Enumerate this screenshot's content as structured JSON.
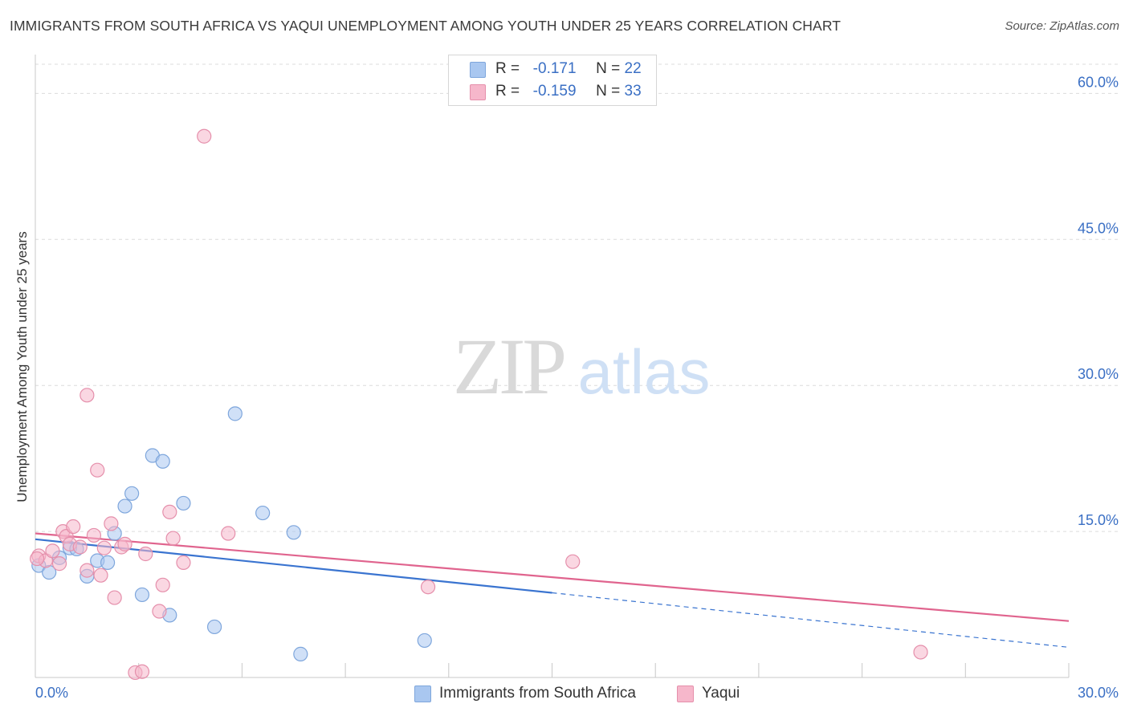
{
  "title": "IMMIGRANTS FROM SOUTH AFRICA VS YAQUI UNEMPLOYMENT AMONG YOUTH UNDER 25 YEARS CORRELATION CHART",
  "source": "Source: ZipAtlas.com",
  "watermark": {
    "zip": "ZIP",
    "atlas": "atlas"
  },
  "legend": {
    "rows": [
      {
        "r_label": "R =",
        "r_value": "-0.171",
        "n_label": "N =",
        "n_value": "22",
        "color": "#a9c7f0"
      },
      {
        "r_label": "R =",
        "r_value": "-0.159",
        "n_label": "N =",
        "n_value": "33",
        "color": "#f6b7cb"
      }
    ]
  },
  "chart_data": {
    "type": "scatter",
    "title": "IMMIGRANTS FROM SOUTH AFRICA VS YAQUI UNEMPLOYMENT AMONG YOUTH UNDER 25 YEARS CORRELATION CHART",
    "xlabel": "",
    "ylabel": "Unemployment Among Youth under 25 years",
    "xlim": [
      0,
      30
    ],
    "ylim": [
      0,
      63
    ],
    "x_ticks": [
      0,
      3,
      6,
      9,
      12,
      15,
      18,
      21,
      24,
      27,
      30
    ],
    "x_tick_labels": [
      {
        "value": 0,
        "label": "0.0%"
      },
      {
        "value": 30,
        "label": "30.0%"
      }
    ],
    "y_ticks": [
      {
        "value": 15,
        "label": "15.0%"
      },
      {
        "value": 30,
        "label": "30.0%"
      },
      {
        "value": 45,
        "label": "45.0%"
      },
      {
        "value": 60,
        "label": "60.0%"
      }
    ],
    "grid": true,
    "legend_position": "top-center",
    "series": [
      {
        "name": "Immigrants from South Africa",
        "color": "#a9c7f0",
        "stroke": "#7ea6dc",
        "line_color": "#3a74d0",
        "trend": {
          "x_start": 0,
          "y_start": 14.2,
          "x_solid_end": 15,
          "y_solid_end": 8.7,
          "x_end": 30,
          "y_end": 3.1
        },
        "points": [
          [
            0.1,
            11.5
          ],
          [
            0.4,
            10.8
          ],
          [
            0.7,
            12.3
          ],
          [
            1.0,
            13.3
          ],
          [
            1.2,
            13.2
          ],
          [
            1.5,
            10.4
          ],
          [
            1.8,
            12.0
          ],
          [
            2.1,
            11.8
          ],
          [
            2.3,
            14.8
          ],
          [
            2.6,
            17.6
          ],
          [
            2.8,
            18.9
          ],
          [
            3.1,
            8.5
          ],
          [
            3.4,
            22.8
          ],
          [
            3.7,
            22.2
          ],
          [
            3.9,
            6.4
          ],
          [
            4.3,
            17.9
          ],
          [
            5.2,
            5.2
          ],
          [
            5.8,
            27.1
          ],
          [
            6.6,
            16.9
          ],
          [
            7.5,
            14.9
          ],
          [
            7.7,
            2.4
          ],
          [
            11.3,
            3.8
          ]
        ]
      },
      {
        "name": "Yaqui",
        "color": "#f6b7cb",
        "stroke": "#e58fab",
        "line_color": "#e0648e",
        "trend": {
          "x_start": 0,
          "y_start": 14.8,
          "x_end": 30,
          "y_end": 5.8
        },
        "points": [
          [
            0.1,
            12.5
          ],
          [
            0.3,
            12.0
          ],
          [
            0.5,
            13.0
          ],
          [
            0.7,
            11.7
          ],
          [
            0.8,
            15.0
          ],
          [
            0.9,
            14.5
          ],
          [
            1.0,
            13.7
          ],
          [
            1.1,
            15.5
          ],
          [
            1.3,
            13.4
          ],
          [
            1.5,
            11.0
          ],
          [
            1.5,
            29.0
          ],
          [
            1.7,
            14.6
          ],
          [
            1.8,
            21.3
          ],
          [
            1.9,
            10.5
          ],
          [
            2.0,
            13.3
          ],
          [
            2.2,
            15.8
          ],
          [
            2.3,
            8.2
          ],
          [
            2.5,
            13.4
          ],
          [
            2.6,
            13.7
          ],
          [
            2.9,
            0.5
          ],
          [
            3.1,
            0.6
          ],
          [
            3.2,
            12.7
          ],
          [
            3.6,
            6.8
          ],
          [
            3.7,
            9.5
          ],
          [
            3.9,
            17.0
          ],
          [
            4.0,
            14.3
          ],
          [
            4.3,
            11.8
          ],
          [
            4.9,
            55.6
          ],
          [
            5.6,
            14.8
          ],
          [
            11.4,
            9.3
          ],
          [
            15.6,
            11.9
          ],
          [
            25.7,
            2.6
          ],
          [
            0.05,
            12.2
          ]
        ]
      }
    ]
  },
  "bottom_legend": [
    {
      "label": "Immigrants from South Africa",
      "color": "#a9c7f0"
    },
    {
      "label": "Yaqui",
      "color": "#f6b7cb"
    }
  ]
}
